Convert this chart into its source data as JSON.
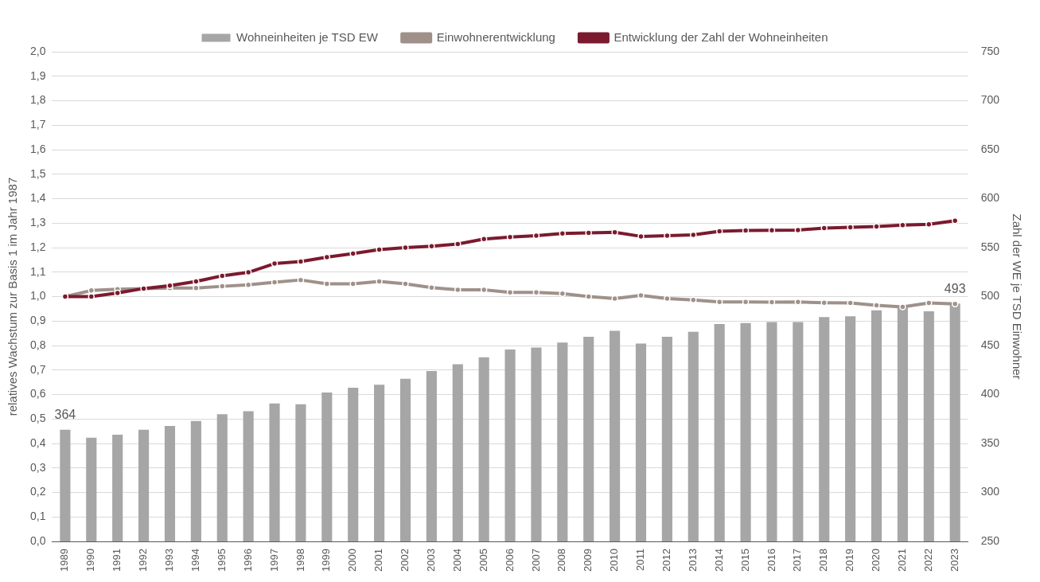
{
  "chart_data": {
    "type": "bar",
    "categories": [
      "1989",
      "1990",
      "1991",
      "1992",
      "1993",
      "1994",
      "1995",
      "1996",
      "1997",
      "1998",
      "1999",
      "2000",
      "2001",
      "2002",
      "2003",
      "2004",
      "2005",
      "2006",
      "2007",
      "2008",
      "2009",
      "2010",
      "2011",
      "2012",
      "2013",
      "2014",
      "2015",
      "2016",
      "2017",
      "2018",
      "2019",
      "2020",
      "2021",
      "2022",
      "2023"
    ],
    "series": [
      {
        "name": "Wohneinheiten je TSD EW",
        "axis": "y2",
        "color": "#a6a6a6",
        "values": [
          364,
          356,
          359,
          364,
          368,
          373,
          380,
          383,
          391,
          390,
          402,
          407,
          410,
          416,
          424,
          431,
          438,
          446,
          448,
          453,
          459,
          465,
          452,
          459,
          464,
          472,
          473,
          474,
          474,
          479,
          480,
          486,
          489,
          485,
          493
        ],
        "value_labels": [
          "364",
          null,
          null,
          null,
          null,
          null,
          null,
          null,
          null,
          null,
          null,
          null,
          null,
          null,
          null,
          null,
          null,
          null,
          null,
          null,
          null,
          null,
          null,
          null,
          null,
          null,
          null,
          null,
          null,
          null,
          null,
          null,
          null,
          null,
          "493"
        ]
      },
      {
        "name": "Einwohnerentwicklung",
        "type": "line",
        "color": "#9f918a",
        "values": [
          1.0,
          1.025,
          1.03,
          1.033,
          1.035,
          1.035,
          1.042,
          1.048,
          1.059,
          1.068,
          1.052,
          1.052,
          1.062,
          1.052,
          1.037,
          1.028,
          1.028,
          1.017,
          1.017,
          1.012,
          1.0,
          0.992,
          1.005,
          0.992,
          0.986,
          0.978,
          0.978,
          0.977,
          0.978,
          0.975,
          0.974,
          0.964,
          0.958,
          0.974,
          0.97
        ]
      },
      {
        "name": "Entwicklung der Zahl der Wohneinheiten",
        "type": "line",
        "color": "#7b1a2e",
        "values": [
          1.0,
          1.0,
          1.015,
          1.033,
          1.045,
          1.062,
          1.085,
          1.099,
          1.135,
          1.143,
          1.161,
          1.176,
          1.192,
          1.2,
          1.206,
          1.215,
          1.235,
          1.243,
          1.249,
          1.258,
          1.26,
          1.263,
          1.246,
          1.249,
          1.252,
          1.267,
          1.27,
          1.271,
          1.272,
          1.28,
          1.283,
          1.286,
          1.292,
          1.295,
          1.31
        ]
      }
    ],
    "ylabel": "relatives Wachstum zur Basis 1 im Jahr 1987",
    "y2label": "Zahl der WE je TSD Einwohner",
    "ylim": [
      0,
      2
    ],
    "yticks": [
      {
        "value": 0,
        "label": "0,0"
      },
      {
        "value": 0.1,
        "label": "0,1"
      },
      {
        "value": 0.2,
        "label": "0,2"
      },
      {
        "value": 0.3,
        "label": "0,3"
      },
      {
        "value": 0.4,
        "label": "0,4"
      },
      {
        "value": 0.5,
        "label": "0,5"
      },
      {
        "value": 0.6,
        "label": "0,6"
      },
      {
        "value": 0.7,
        "label": "0,7"
      },
      {
        "value": 0.8,
        "label": "0,8"
      },
      {
        "value": 0.9,
        "label": "0,9"
      },
      {
        "value": 1,
        "label": "1,0"
      },
      {
        "value": 1.1,
        "label": "1,1"
      },
      {
        "value": 1.2,
        "label": "1,2"
      },
      {
        "value": 1.3,
        "label": "1,3"
      },
      {
        "value": 1.4,
        "label": "1,4"
      },
      {
        "value": 1.5,
        "label": "1,5"
      },
      {
        "value": 1.6,
        "label": "1,6"
      },
      {
        "value": 1.7,
        "label": "1,7"
      },
      {
        "value": 1.8,
        "label": "1,8"
      },
      {
        "value": 1.9,
        "label": "1,9"
      },
      {
        "value": 2,
        "label": "2,0"
      }
    ],
    "y2lim": [
      250,
      750
    ],
    "y2ticks": [
      250,
      300,
      350,
      400,
      450,
      500,
      550,
      600,
      650,
      700,
      750
    ],
    "grid": "y",
    "legend": "top",
    "marker": "circle",
    "line_style": "solid"
  }
}
